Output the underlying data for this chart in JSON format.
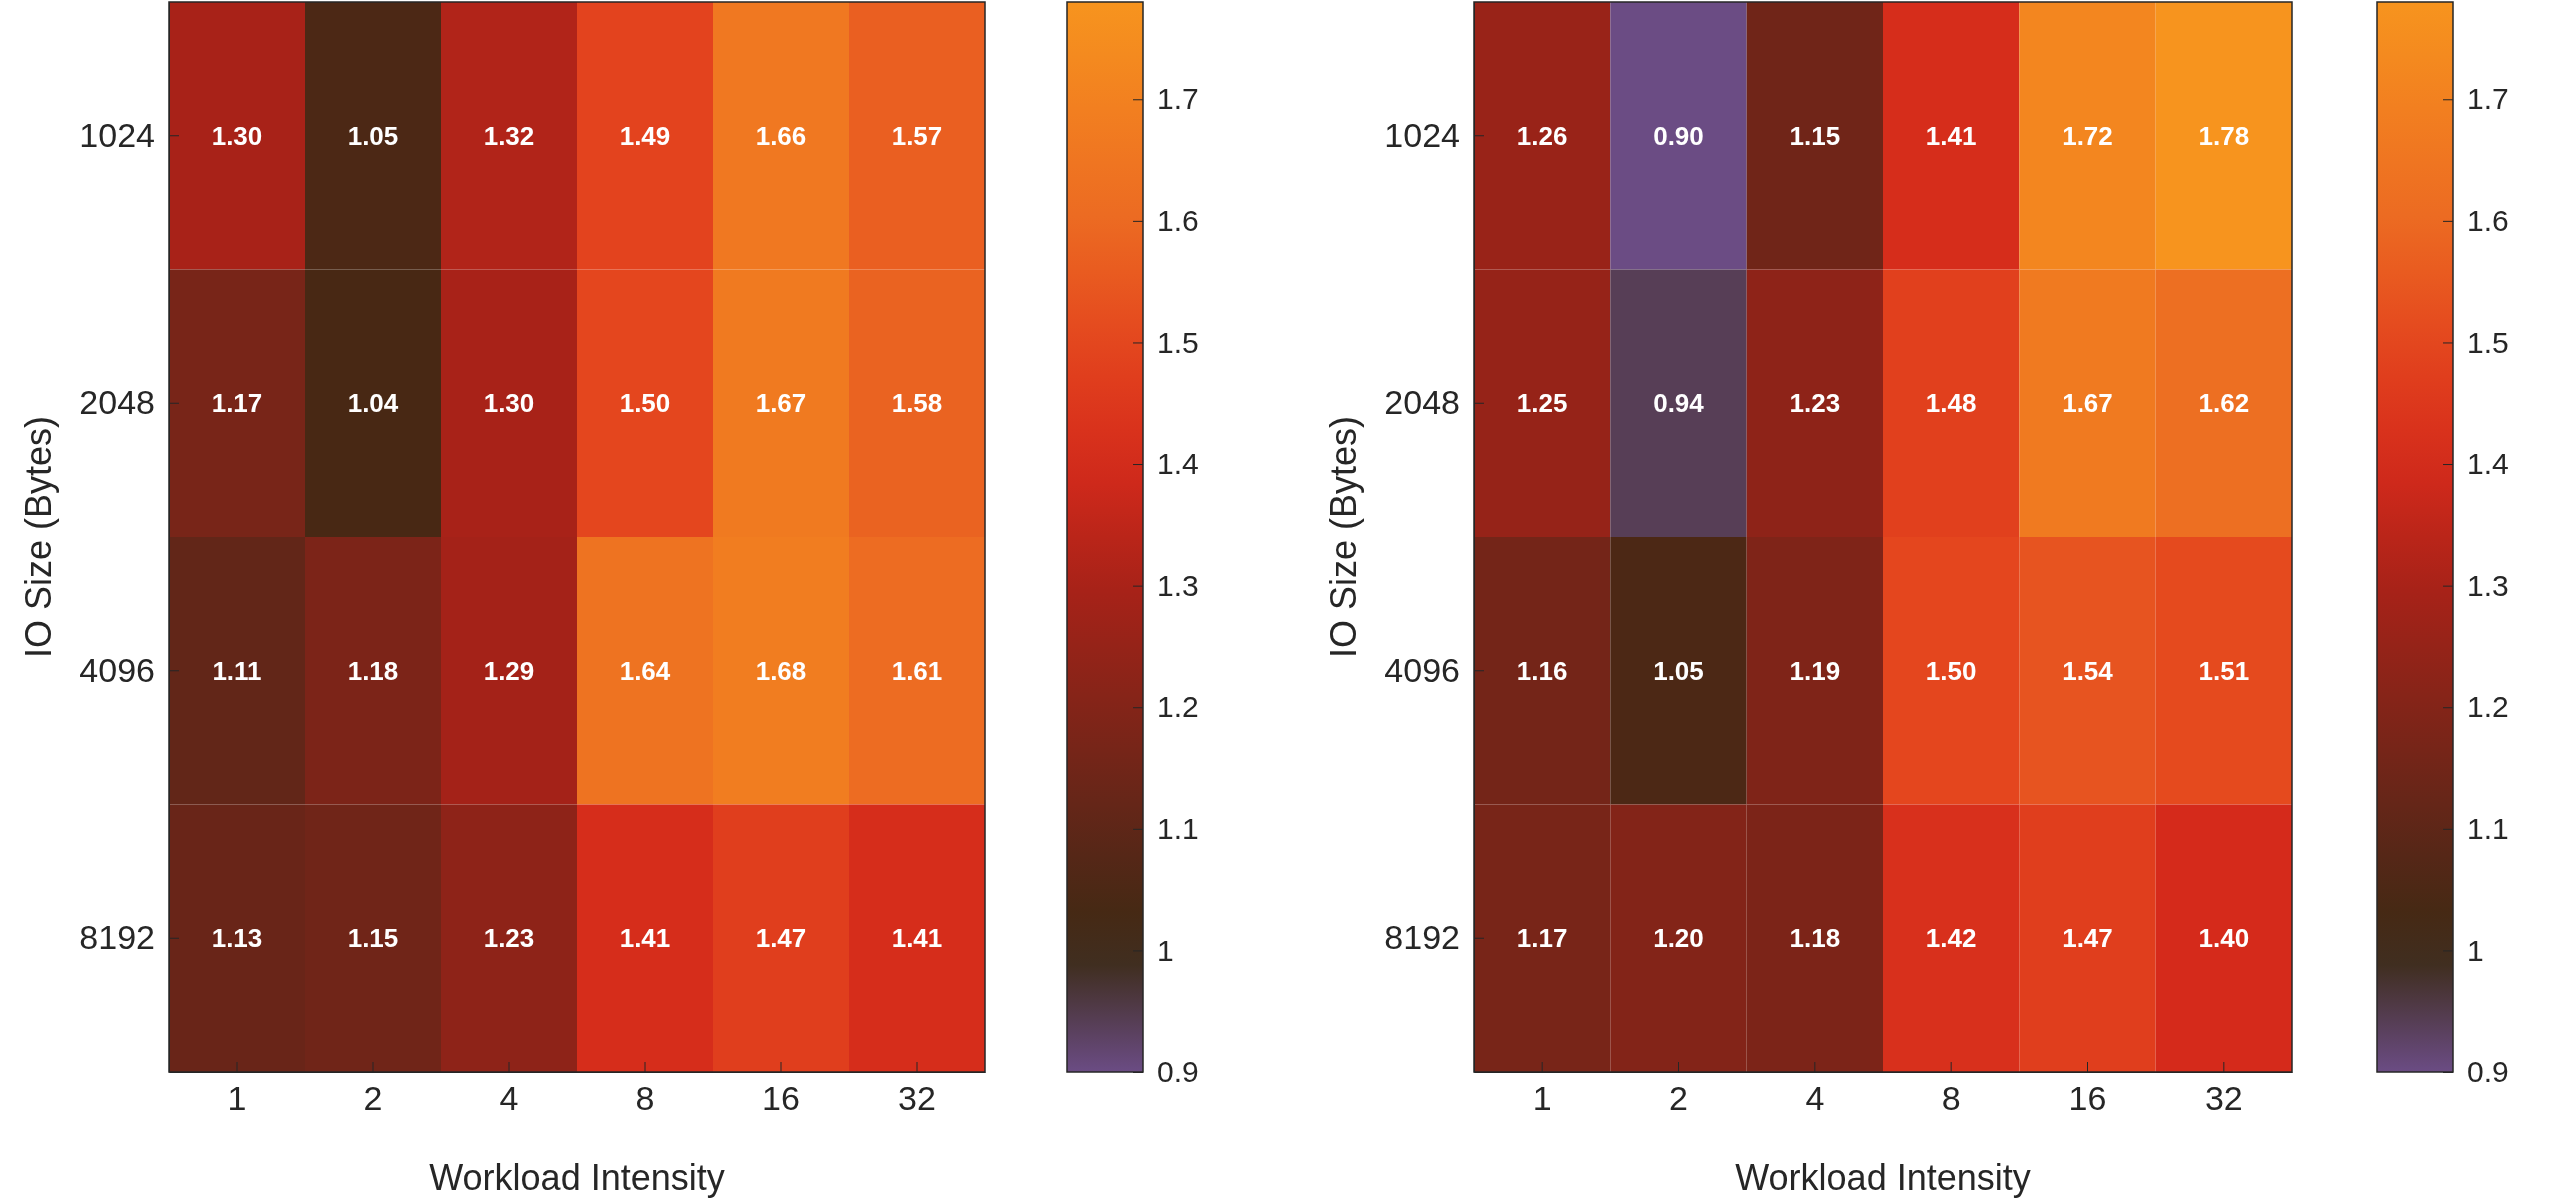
{
  "chart_data": [
    {
      "type": "heatmap",
      "xlabel": "Workload Intensity",
      "ylabel": "IO Size (Bytes)",
      "categories": [
        "1",
        "2",
        "4",
        "8",
        "16",
        "32"
      ],
      "y_categories": [
        "1024",
        "2048",
        "4096",
        "8192"
      ],
      "cells": [
        [
          1.3,
          1.05,
          1.32,
          1.49,
          1.66,
          1.57
        ],
        [
          1.17,
          1.04,
          1.3,
          1.5,
          1.67,
          1.58
        ],
        [
          1.11,
          1.18,
          1.29,
          1.64,
          1.68,
          1.61
        ],
        [
          1.13,
          1.15,
          1.23,
          1.41,
          1.47,
          1.41
        ]
      ],
      "cell_labels": [
        [
          "1.30",
          "1.05",
          "1.32",
          "1.49",
          "1.66",
          "1.57"
        ],
        [
          "1.17",
          "1.04",
          "1.30",
          "1.50",
          "1.67",
          "1.58"
        ],
        [
          "1.11",
          "1.18",
          "1.29",
          "1.64",
          "1.68",
          "1.61"
        ],
        [
          "1.13",
          "1.15",
          "1.23",
          "1.41",
          "1.47",
          "1.41"
        ]
      ],
      "clim": [
        0.9,
        1.78
      ],
      "cticks": [
        0.9,
        1,
        1.1,
        1.2,
        1.3,
        1.4,
        1.5,
        1.6,
        1.7
      ]
    },
    {
      "type": "heatmap",
      "xlabel": "Workload Intensity",
      "ylabel": "IO Size (Bytes)",
      "categories": [
        "1",
        "2",
        "4",
        "8",
        "16",
        "32"
      ],
      "y_categories": [
        "1024",
        "2048",
        "4096",
        "8192"
      ],
      "cells": [
        [
          1.26,
          0.9,
          1.15,
          1.41,
          1.72,
          1.78
        ],
        [
          1.25,
          0.94,
          1.23,
          1.48,
          1.67,
          1.62
        ],
        [
          1.16,
          1.05,
          1.19,
          1.5,
          1.54,
          1.51
        ],
        [
          1.17,
          1.2,
          1.18,
          1.42,
          1.47,
          1.4
        ]
      ],
      "cell_labels": [
        [
          "1.26",
          "0.90",
          "1.15",
          "1.41",
          "1.72",
          "1.78"
        ],
        [
          "1.25",
          "0.94",
          "1.23",
          "1.48",
          "1.67",
          "1.62"
        ],
        [
          "1.16",
          "1.05",
          "1.19",
          "1.50",
          "1.54",
          "1.51"
        ],
        [
          "1.17",
          "1.20",
          "1.18",
          "1.42",
          "1.47",
          "1.40"
        ]
      ],
      "clim": [
        0.9,
        1.78
      ],
      "cticks": [
        0.9,
        1,
        1.1,
        1.2,
        1.3,
        1.4,
        1.5,
        1.6,
        1.7
      ]
    }
  ]
}
